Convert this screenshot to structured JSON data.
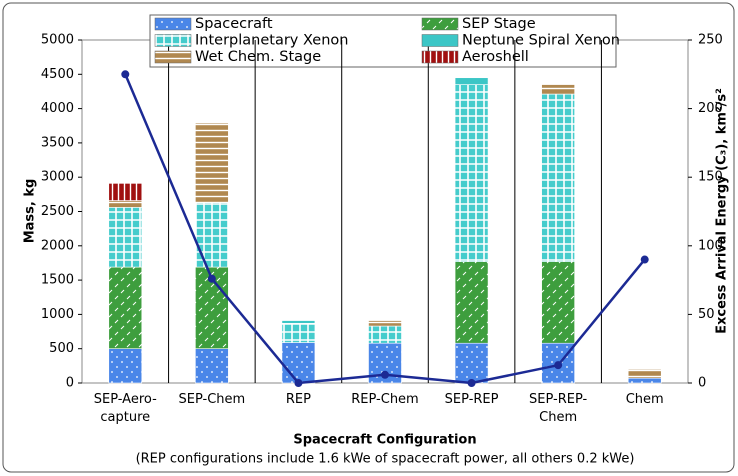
{
  "chart_data": {
    "type": "stacked-bar-line",
    "x_label": "Spacecraft Configuration",
    "note": "(REP configurations include 1.6 kWe of spacecraft power, all others 0.2 kWe)",
    "y_label": "Mass, kg",
    "y2_label": "Excess Arrival Energy (C₃), km²/s²",
    "categories": [
      "SEP-Aero-\ncapture",
      "SEP-Chem",
      "REP",
      "REP-Chem",
      "SEP-REP",
      "SEP-REP-\nChem",
      "Chem"
    ],
    "series": [
      {
        "name": "Spacecraft",
        "color": "#4a86e8",
        "values": [
          500,
          500,
          590,
          580,
          580,
          580,
          70
        ]
      },
      {
        "name": "SEP Stage",
        "color": "#3e9e3e",
        "values": [
          1190,
          1190,
          0,
          0,
          1190,
          1190,
          0
        ]
      },
      {
        "name": "Interplanetary Xenon",
        "color": "#45cccc",
        "values": [
          870,
          940,
          280,
          250,
          2580,
          2440,
          0
        ]
      },
      {
        "name": "Neptune Spiral Xenon",
        "color": "#3cc6c6",
        "values": [
          0,
          0,
          40,
          0,
          100,
          0,
          0
        ]
      },
      {
        "name": "Wet Chem. Stage",
        "color": "#b08850",
        "values": [
          100,
          1160,
          0,
          80,
          0,
          140,
          130
        ]
      },
      {
        "name": "Aeroshell",
        "color": "#a01010",
        "values": [
          250,
          0,
          0,
          0,
          0,
          0,
          0
        ]
      }
    ],
    "line": {
      "color": "#1c2a94",
      "axis": "y2",
      "values": [
        225,
        76,
        0,
        6,
        0,
        13,
        90
      ]
    },
    "ylim": [
      0,
      5000
    ],
    "yticks": [
      0,
      500,
      1000,
      1500,
      2000,
      2500,
      3000,
      3500,
      4000,
      4500,
      5000
    ],
    "y2lim": [
      0,
      250
    ],
    "y2ticks": [
      0,
      50,
      100,
      150,
      200,
      250
    ],
    "grid": false
  }
}
